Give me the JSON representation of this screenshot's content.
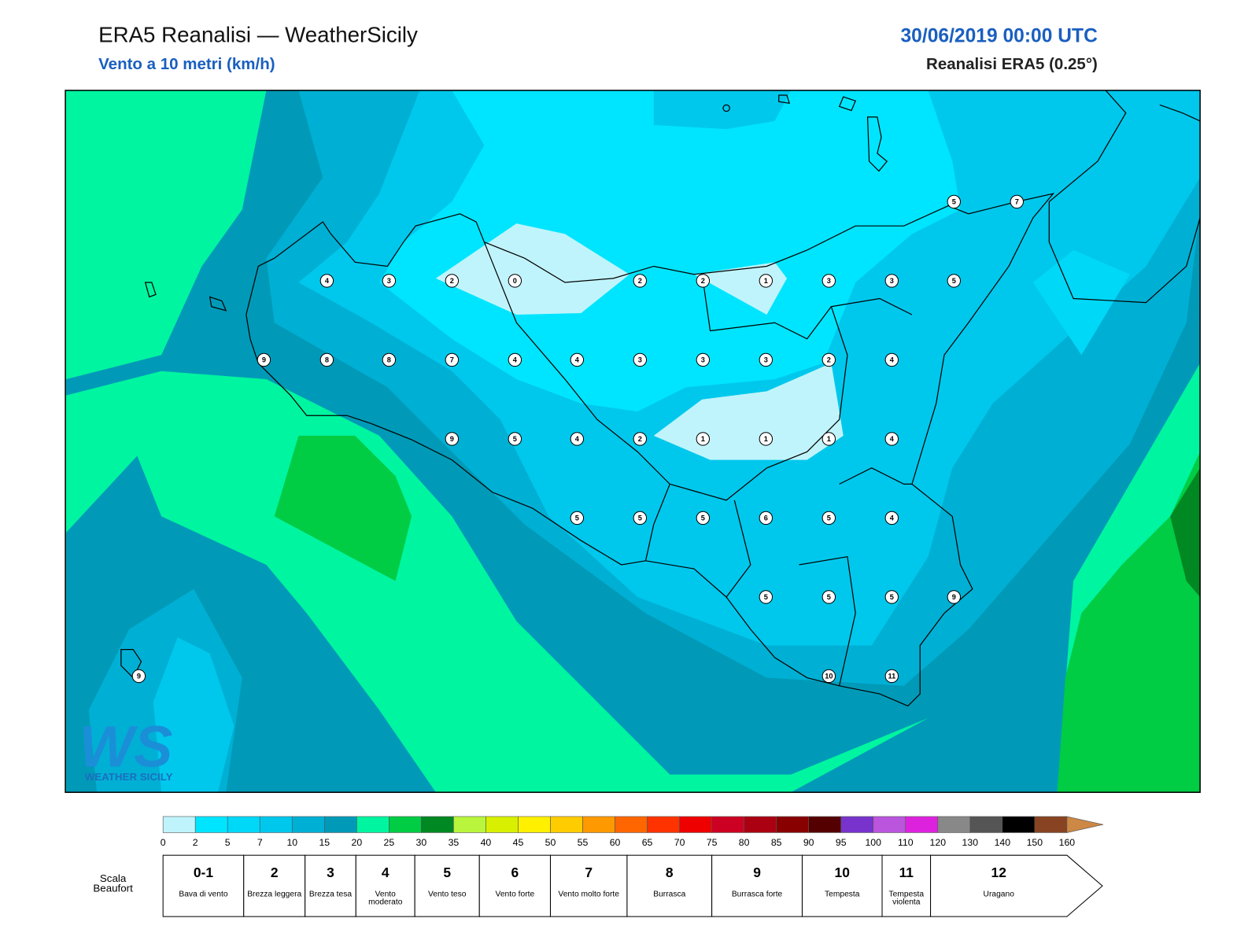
{
  "header": {
    "title": "ERA5 Reanalisi — WeatherSicily",
    "subtitle": "Vento a 10 metri (km/h)",
    "date": "30/06/2019 00:00 UTC",
    "source": "Reanalisi ERA5 (0.25°)"
  },
  "stations": [
    4,
    3,
    2,
    0,
    2,
    2,
    1,
    3,
    3,
    5,
    9,
    8,
    8,
    7,
    4,
    4,
    3,
    3,
    3,
    2,
    4,
    9,
    5,
    4,
    2,
    1,
    1,
    1,
    4,
    5,
    5,
    5,
    6,
    5,
    4,
    5,
    5,
    5,
    9,
    10,
    11,
    5,
    7,
    9
  ],
  "logo": {
    "mark": "WS",
    "text": "WEATHER SICILY"
  },
  "legend": {
    "ticks": [
      0,
      2,
      5,
      7,
      10,
      15,
      20,
      25,
      30,
      35,
      40,
      45,
      50,
      55,
      60,
      65,
      70,
      75,
      80,
      85,
      90,
      95,
      100,
      110,
      120,
      130,
      140,
      150,
      160
    ],
    "colors": [
      "#c0f4fc",
      "#00e5ff",
      "#00d8f8",
      "#00c8ec",
      "#00b0d4",
      "#009ab8",
      "#00f5a0",
      "#00cc44",
      "#008822",
      "#b8f53c",
      "#d8f000",
      "#fff000",
      "#ffcc00",
      "#ff9900",
      "#ff6600",
      "#ff3300",
      "#ee0000",
      "#cc0022",
      "#aa0011",
      "#880000",
      "#550000",
      "#7733cc",
      "#bb55dd",
      "#dd22dd",
      "#888888",
      "#555555",
      "#000000",
      "#884422",
      "#cc8844"
    ]
  },
  "beaufort": {
    "title": "Scala Beaufort",
    "levels": [
      {
        "force": "0-1",
        "desc": "Bava di vento"
      },
      {
        "force": "2",
        "desc": "Brezza leggera"
      },
      {
        "force": "3",
        "desc": "Brezza tesa"
      },
      {
        "force": "4",
        "desc": "Vento moderato"
      },
      {
        "force": "5",
        "desc": "Vento teso"
      },
      {
        "force": "6",
        "desc": "Vento forte"
      },
      {
        "force": "7",
        "desc": "Vento molto forte"
      },
      {
        "force": "8",
        "desc": "Burrasca"
      },
      {
        "force": "9",
        "desc": "Burrasca forte"
      },
      {
        "force": "10",
        "desc": "Tempesta"
      },
      {
        "force": "11",
        "desc": "Tempesta violenta"
      },
      {
        "force": "12",
        "desc": "Uragano"
      }
    ]
  }
}
